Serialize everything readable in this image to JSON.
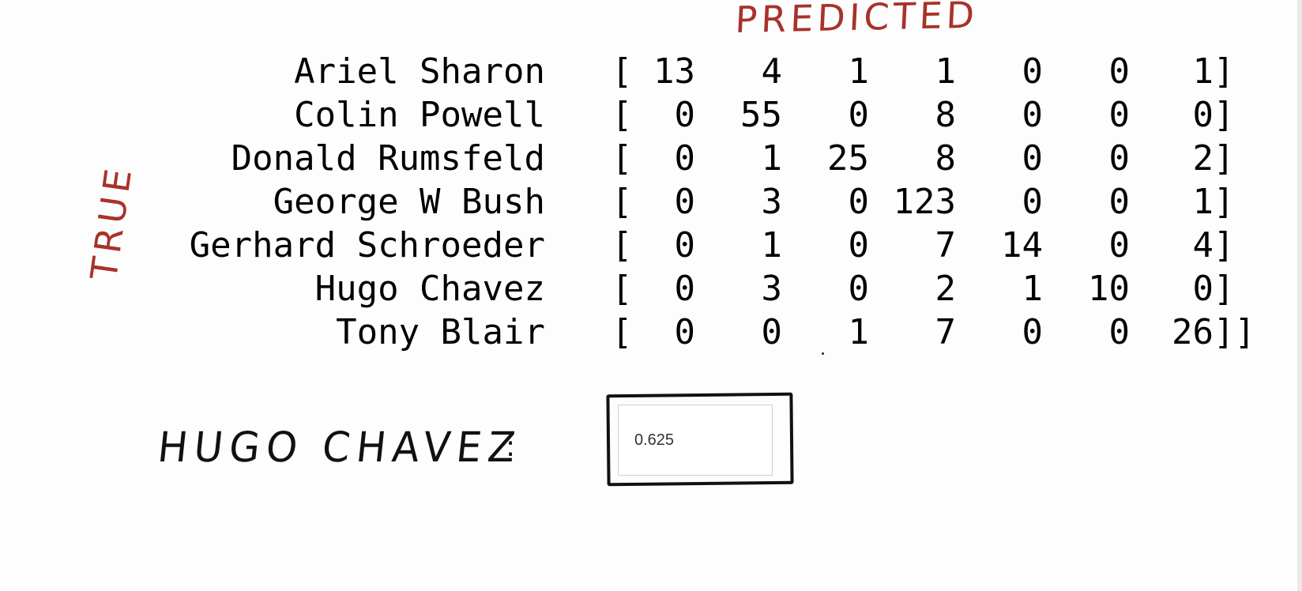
{
  "annotations": {
    "predicted": "PREDICTED",
    "true": "TRUE",
    "question_label": "HUGO CHAVEZ",
    "colon": ":"
  },
  "matrix": {
    "open_bracket": "[",
    "close_bracket": "]",
    "final_close": "]]",
    "rows": [
      {
        "name": "Ariel Sharon",
        "values": [
          "13",
          "4",
          "1",
          "1",
          "0",
          "0",
          "1"
        ]
      },
      {
        "name": "Colin Powell",
        "values": [
          "0",
          "55",
          "0",
          "8",
          "0",
          "0",
          "0"
        ]
      },
      {
        "name": "Donald Rumsfeld",
        "values": [
          "0",
          "1",
          "25",
          "8",
          "0",
          "0",
          "2"
        ]
      },
      {
        "name": "George W Bush",
        "values": [
          "0",
          "3",
          "0",
          "123",
          "0",
          "0",
          "1"
        ]
      },
      {
        "name": "Gerhard Schroeder",
        "values": [
          "0",
          "1",
          "0",
          "7",
          "14",
          "0",
          "4"
        ]
      },
      {
        "name": "Hugo Chavez",
        "values": [
          "0",
          "3",
          "0",
          "2",
          "1",
          "10",
          "0"
        ]
      },
      {
        "name": "Tony Blair",
        "values": [
          "0",
          "0",
          "1",
          "7",
          "0",
          "0",
          "26"
        ]
      }
    ]
  },
  "answer": {
    "value": "0.625"
  }
}
